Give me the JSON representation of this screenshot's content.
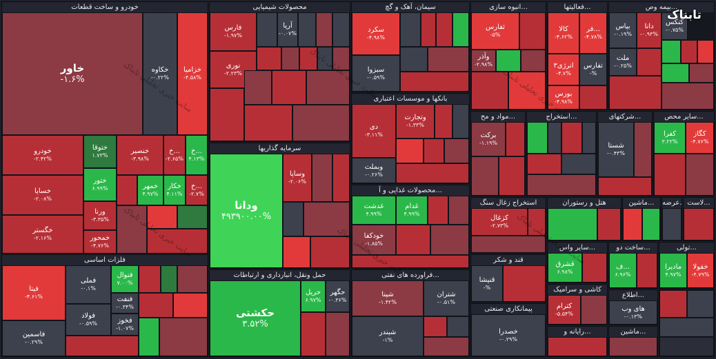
{
  "logo": {
    "text": "تابناک"
  },
  "watermark": "سایت خبری تحلیلی تابناک",
  "sections": [
    {
      "title": "خودرو و ساخت قطعات"
    },
    {
      "title": "محصولات شیمیایی"
    },
    {
      "title": "سیمان، آهک و گچ"
    },
    {
      "title": "انبوه سازی..."
    },
    {
      "title": "فعالیتها..."
    },
    {
      "title": "بیمه وص..."
    },
    {
      "title": "بانکها و موسسات اعتباری"
    },
    {
      "title": "سرمایه گذاریها"
    },
    {
      "title": "محصولات غذایی و آ..."
    },
    {
      "title": "فلزات اساسی"
    },
    {
      "title": "حمل ونقل، انبارداری و ارتباطات"
    },
    {
      "title": "فراورده های نفتی..."
    },
    {
      "title": "مواد و مح..."
    },
    {
      "title": "استخراج..."
    },
    {
      "title": "شرکتهای..."
    },
    {
      "title": "سایر محص..."
    },
    {
      "title": "استخراج زغال سنگ"
    },
    {
      "title": "هتل و رستوران"
    },
    {
      "title": "ماشین..."
    },
    {
      "title": "عرضه..."
    },
    {
      "title": "لاست..."
    },
    {
      "title": "قند و شکر"
    },
    {
      "title": "سایر واس..."
    },
    {
      "title": "ساخت دو..."
    },
    {
      "title": "تولی..."
    },
    {
      "title": "کاشی و سرامیک"
    },
    {
      "title": "اطلاع..."
    },
    {
      "title": "پیمانکاری صنعتی"
    },
    {
      "title": "رایانه و..."
    },
    {
      "title": "ماشین..."
    }
  ],
  "tiles": {
    "khavar": {
      "name": "خاور",
      "value": "-۱.۶%"
    },
    "khakave": {
      "name": "خکاوه",
      "value": "-۰.۲۲%"
    },
    "khazamia": {
      "name": "خزامیا",
      "value": "-۴.۵۸%"
    },
    "khodro": {
      "name": "خودرو",
      "value": "-۲.۴۲%"
    },
    "khatooghha": {
      "name": "ختوقا",
      "value": "۱.۷۳%"
    },
    "khansir": {
      "name": "خنصیر",
      "value": "-۳.۹۸%"
    },
    "kh1": {
      "name": "خ...",
      "value": "-۲.۶۵%"
    },
    "kh2": {
      "name": "خ...",
      "value": "۴.۱۳%"
    },
    "khatoor": {
      "name": "ختور",
      "value": "۶.۹۹%"
    },
    "khemhor": {
      "name": "خمهر",
      "value": "۴.۹۷%"
    },
    "khekar": {
      "name": "خکار",
      "value": "۴.۱۱%"
    },
    "kh3": {
      "name": "خ...",
      "value": "-۲.۷%"
    },
    "khasapa": {
      "name": "خساپا",
      "value": "-۲.۰۸%"
    },
    "varna": {
      "name": "ورنا",
      "value": "-۳.۳۵%"
    },
    "khegostar": {
      "name": "خگستر",
      "value": "-۲.۱۶%"
    },
    "khemhor2": {
      "name": "خمحور",
      "value": "-۴.۷۶%"
    },
    "fars": {
      "name": "فارس",
      "value": "-۱.۹۷%"
    },
    "arya": {
      "name": "آریا",
      "value": "-۰.۰۷%"
    },
    "noori": {
      "name": "نوری",
      "value": "-۲.۲۳%"
    },
    "sekord": {
      "name": "سکرد",
      "value": "-۴.۹۸%"
    },
    "sebuza": {
      "name": "سبزوا",
      "value": "-۰.۵۹%"
    },
    "tafars": {
      "name": "ثفارس",
      "value": "-۵%"
    },
    "vazar": {
      "name": "وآذر",
      "value": "-۲.۹۸%"
    },
    "kala": {
      "name": "کالا",
      "value": "-۴.۶۲%"
    },
    "far": {
      "name": "فر...",
      "value": "-۴.۷۸%"
    },
    "anergy3": {
      "name": "انرژی۳",
      "value": "-۴.۷%"
    },
    "tafaris": {
      "name": "تفارس",
      "value": "-%"
    },
    "boors": {
      "name": "بورس",
      "value": "-۴.۹۸%"
    },
    "bapas": {
      "name": "بپاس",
      "value": "-۰.۱۹%"
    },
    "dana": {
      "name": "دانا",
      "value": "-۰.۹۳%"
    },
    "mellat": {
      "name": "ملت",
      "value": "-۰.۲۵%"
    },
    "kenkesh": {
      "name": "کنکس",
      "value": "-۰.۷۵%"
    },
    "di": {
      "name": "دی",
      "value": "-۳.۱۱%"
    },
    "vetejarat": {
      "name": "وتجارت",
      "value": "-۱.۳۳%"
    },
    "vebmellat": {
      "name": "وبملت",
      "value": "-۰.۲۶%"
    },
    "barakat": {
      "name": "برکت",
      "value": "-۱.۱۹%"
    },
    "kafra": {
      "name": "کفرا",
      "value": "۳.۲۲%"
    },
    "kegaz": {
      "name": "کگاز",
      "value": "-۴.۷۶%"
    },
    "shasta": {
      "name": "شستا",
      "value": "-۰.۴۳%"
    },
    "vedana": {
      "name": "ودانا",
      "value": "۴۹۳۹۰۰.۰۰%"
    },
    "vasapa": {
      "name": "وساپا",
      "value": "-۲.۰۶%"
    },
    "ghadasht": {
      "name": "غدشت",
      "value": "۴.۹۹%"
    },
    "ghadam": {
      "name": "غدام",
      "value": "۴.۹۹%"
    },
    "khodkafa": {
      "name": "خودکفا",
      "value": "-۱.۸۵%"
    },
    "kezghal": {
      "name": "کزغال",
      "value": "-۲.۷۳%"
    },
    "fita": {
      "name": "فیتا",
      "value": "-۴.۶۱%"
    },
    "felli": {
      "name": "فملی",
      "value": "-۰.۱%"
    },
    "foolad": {
      "name": "فولاد",
      "value": "-۰.۵۹%"
    },
    "fonval": {
      "name": "فنوال",
      "value": "۷.۰۰%"
    },
    "fenft": {
      "name": "فنفت",
      "value": "-۰.۳۴%"
    },
    "fekhuz": {
      "name": "فخوز",
      "value": "-۱.۰۷%"
    },
    "fasmin": {
      "name": "فاسمین",
      "value": "-۰.۲۹%"
    },
    "hekshti": {
      "name": "حکشتی",
      "value": "۳.۵۲%"
    },
    "harir": {
      "name": "حریل",
      "value": "۶.۹۷%"
    },
    "hegohar": {
      "name": "حگهر",
      "value": "-۰.۳۶%"
    },
    "shepna": {
      "name": "شپنا",
      "value": "-۱.۴۲%"
    },
    "shebandar": {
      "name": "شبندر",
      "value": "-۱%"
    },
    "shetran": {
      "name": "شتران",
      "value": "-۰.۵۱%"
    },
    "ghenisha": {
      "name": "قنیشا",
      "value": "-%"
    },
    "ghesharq": {
      "name": "قشرق",
      "value": "۶.۹۸%"
    },
    "ketram": {
      "name": "کترام",
      "value": "-۵.۵۴%"
    },
    "khasra": {
      "name": "خصدرا",
      "value": "-۰.۲۹%"
    },
    "haywb": {
      "name": "های وب",
      "value": "-۰.۱۳%"
    },
    "madira": {
      "name": "مادیرا",
      "value": "۴.۹۷%"
    },
    "khafula": {
      "name": "خفولا",
      "value": "-۴.۷۹%"
    },
    "f1": {
      "name": "ف...",
      "value": "۶.۹۶%"
    }
  }
}
